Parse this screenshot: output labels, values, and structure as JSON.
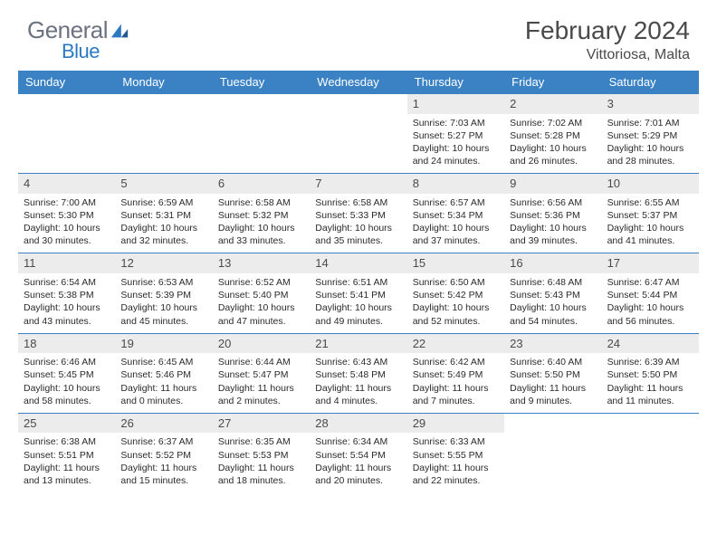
{
  "logo": {
    "word1": "General",
    "word2": "Blue"
  },
  "title": "February 2024",
  "location": "Vittoriosa, Malta",
  "daynames": [
    "Sunday",
    "Monday",
    "Tuesday",
    "Wednesday",
    "Thursday",
    "Friday",
    "Saturday"
  ],
  "colors": {
    "header_bg": "#3b82c4",
    "header_fg": "#ffffff",
    "rule": "#3b82c4",
    "daynum_bg": "#ececec",
    "text": "#2a2a2a",
    "logo_gray": "#6b7280",
    "logo_blue": "#2b79c2"
  },
  "layout": {
    "cols": 7,
    "rows": 5,
    "cell_min_height": 82,
    "body_fontsize": 10.5,
    "daynum_fontsize": 13,
    "header_fontsize": 13,
    "title_fontsize": 28,
    "location_fontsize": 16
  },
  "weeks": [
    [
      null,
      null,
      null,
      null,
      {
        "n": "1",
        "sr": "Sunrise: 7:03 AM",
        "ss": "Sunset: 5:27 PM",
        "dl": "Daylight: 10 hours and 24 minutes."
      },
      {
        "n": "2",
        "sr": "Sunrise: 7:02 AM",
        "ss": "Sunset: 5:28 PM",
        "dl": "Daylight: 10 hours and 26 minutes."
      },
      {
        "n": "3",
        "sr": "Sunrise: 7:01 AM",
        "ss": "Sunset: 5:29 PM",
        "dl": "Daylight: 10 hours and 28 minutes."
      }
    ],
    [
      {
        "n": "4",
        "sr": "Sunrise: 7:00 AM",
        "ss": "Sunset: 5:30 PM",
        "dl": "Daylight: 10 hours and 30 minutes."
      },
      {
        "n": "5",
        "sr": "Sunrise: 6:59 AM",
        "ss": "Sunset: 5:31 PM",
        "dl": "Daylight: 10 hours and 32 minutes."
      },
      {
        "n": "6",
        "sr": "Sunrise: 6:58 AM",
        "ss": "Sunset: 5:32 PM",
        "dl": "Daylight: 10 hours and 33 minutes."
      },
      {
        "n": "7",
        "sr": "Sunrise: 6:58 AM",
        "ss": "Sunset: 5:33 PM",
        "dl": "Daylight: 10 hours and 35 minutes."
      },
      {
        "n": "8",
        "sr": "Sunrise: 6:57 AM",
        "ss": "Sunset: 5:34 PM",
        "dl": "Daylight: 10 hours and 37 minutes."
      },
      {
        "n": "9",
        "sr": "Sunrise: 6:56 AM",
        "ss": "Sunset: 5:36 PM",
        "dl": "Daylight: 10 hours and 39 minutes."
      },
      {
        "n": "10",
        "sr": "Sunrise: 6:55 AM",
        "ss": "Sunset: 5:37 PM",
        "dl": "Daylight: 10 hours and 41 minutes."
      }
    ],
    [
      {
        "n": "11",
        "sr": "Sunrise: 6:54 AM",
        "ss": "Sunset: 5:38 PM",
        "dl": "Daylight: 10 hours and 43 minutes."
      },
      {
        "n": "12",
        "sr": "Sunrise: 6:53 AM",
        "ss": "Sunset: 5:39 PM",
        "dl": "Daylight: 10 hours and 45 minutes."
      },
      {
        "n": "13",
        "sr": "Sunrise: 6:52 AM",
        "ss": "Sunset: 5:40 PM",
        "dl": "Daylight: 10 hours and 47 minutes."
      },
      {
        "n": "14",
        "sr": "Sunrise: 6:51 AM",
        "ss": "Sunset: 5:41 PM",
        "dl": "Daylight: 10 hours and 49 minutes."
      },
      {
        "n": "15",
        "sr": "Sunrise: 6:50 AM",
        "ss": "Sunset: 5:42 PM",
        "dl": "Daylight: 10 hours and 52 minutes."
      },
      {
        "n": "16",
        "sr": "Sunrise: 6:48 AM",
        "ss": "Sunset: 5:43 PM",
        "dl": "Daylight: 10 hours and 54 minutes."
      },
      {
        "n": "17",
        "sr": "Sunrise: 6:47 AM",
        "ss": "Sunset: 5:44 PM",
        "dl": "Daylight: 10 hours and 56 minutes."
      }
    ],
    [
      {
        "n": "18",
        "sr": "Sunrise: 6:46 AM",
        "ss": "Sunset: 5:45 PM",
        "dl": "Daylight: 10 hours and 58 minutes."
      },
      {
        "n": "19",
        "sr": "Sunrise: 6:45 AM",
        "ss": "Sunset: 5:46 PM",
        "dl": "Daylight: 11 hours and 0 minutes."
      },
      {
        "n": "20",
        "sr": "Sunrise: 6:44 AM",
        "ss": "Sunset: 5:47 PM",
        "dl": "Daylight: 11 hours and 2 minutes."
      },
      {
        "n": "21",
        "sr": "Sunrise: 6:43 AM",
        "ss": "Sunset: 5:48 PM",
        "dl": "Daylight: 11 hours and 4 minutes."
      },
      {
        "n": "22",
        "sr": "Sunrise: 6:42 AM",
        "ss": "Sunset: 5:49 PM",
        "dl": "Daylight: 11 hours and 7 minutes."
      },
      {
        "n": "23",
        "sr": "Sunrise: 6:40 AM",
        "ss": "Sunset: 5:50 PM",
        "dl": "Daylight: 11 hours and 9 minutes."
      },
      {
        "n": "24",
        "sr": "Sunrise: 6:39 AM",
        "ss": "Sunset: 5:50 PM",
        "dl": "Daylight: 11 hours and 11 minutes."
      }
    ],
    [
      {
        "n": "25",
        "sr": "Sunrise: 6:38 AM",
        "ss": "Sunset: 5:51 PM",
        "dl": "Daylight: 11 hours and 13 minutes."
      },
      {
        "n": "26",
        "sr": "Sunrise: 6:37 AM",
        "ss": "Sunset: 5:52 PM",
        "dl": "Daylight: 11 hours and 15 minutes."
      },
      {
        "n": "27",
        "sr": "Sunrise: 6:35 AM",
        "ss": "Sunset: 5:53 PM",
        "dl": "Daylight: 11 hours and 18 minutes."
      },
      {
        "n": "28",
        "sr": "Sunrise: 6:34 AM",
        "ss": "Sunset: 5:54 PM",
        "dl": "Daylight: 11 hours and 20 minutes."
      },
      {
        "n": "29",
        "sr": "Sunrise: 6:33 AM",
        "ss": "Sunset: 5:55 PM",
        "dl": "Daylight: 11 hours and 22 minutes."
      },
      null,
      null
    ]
  ]
}
